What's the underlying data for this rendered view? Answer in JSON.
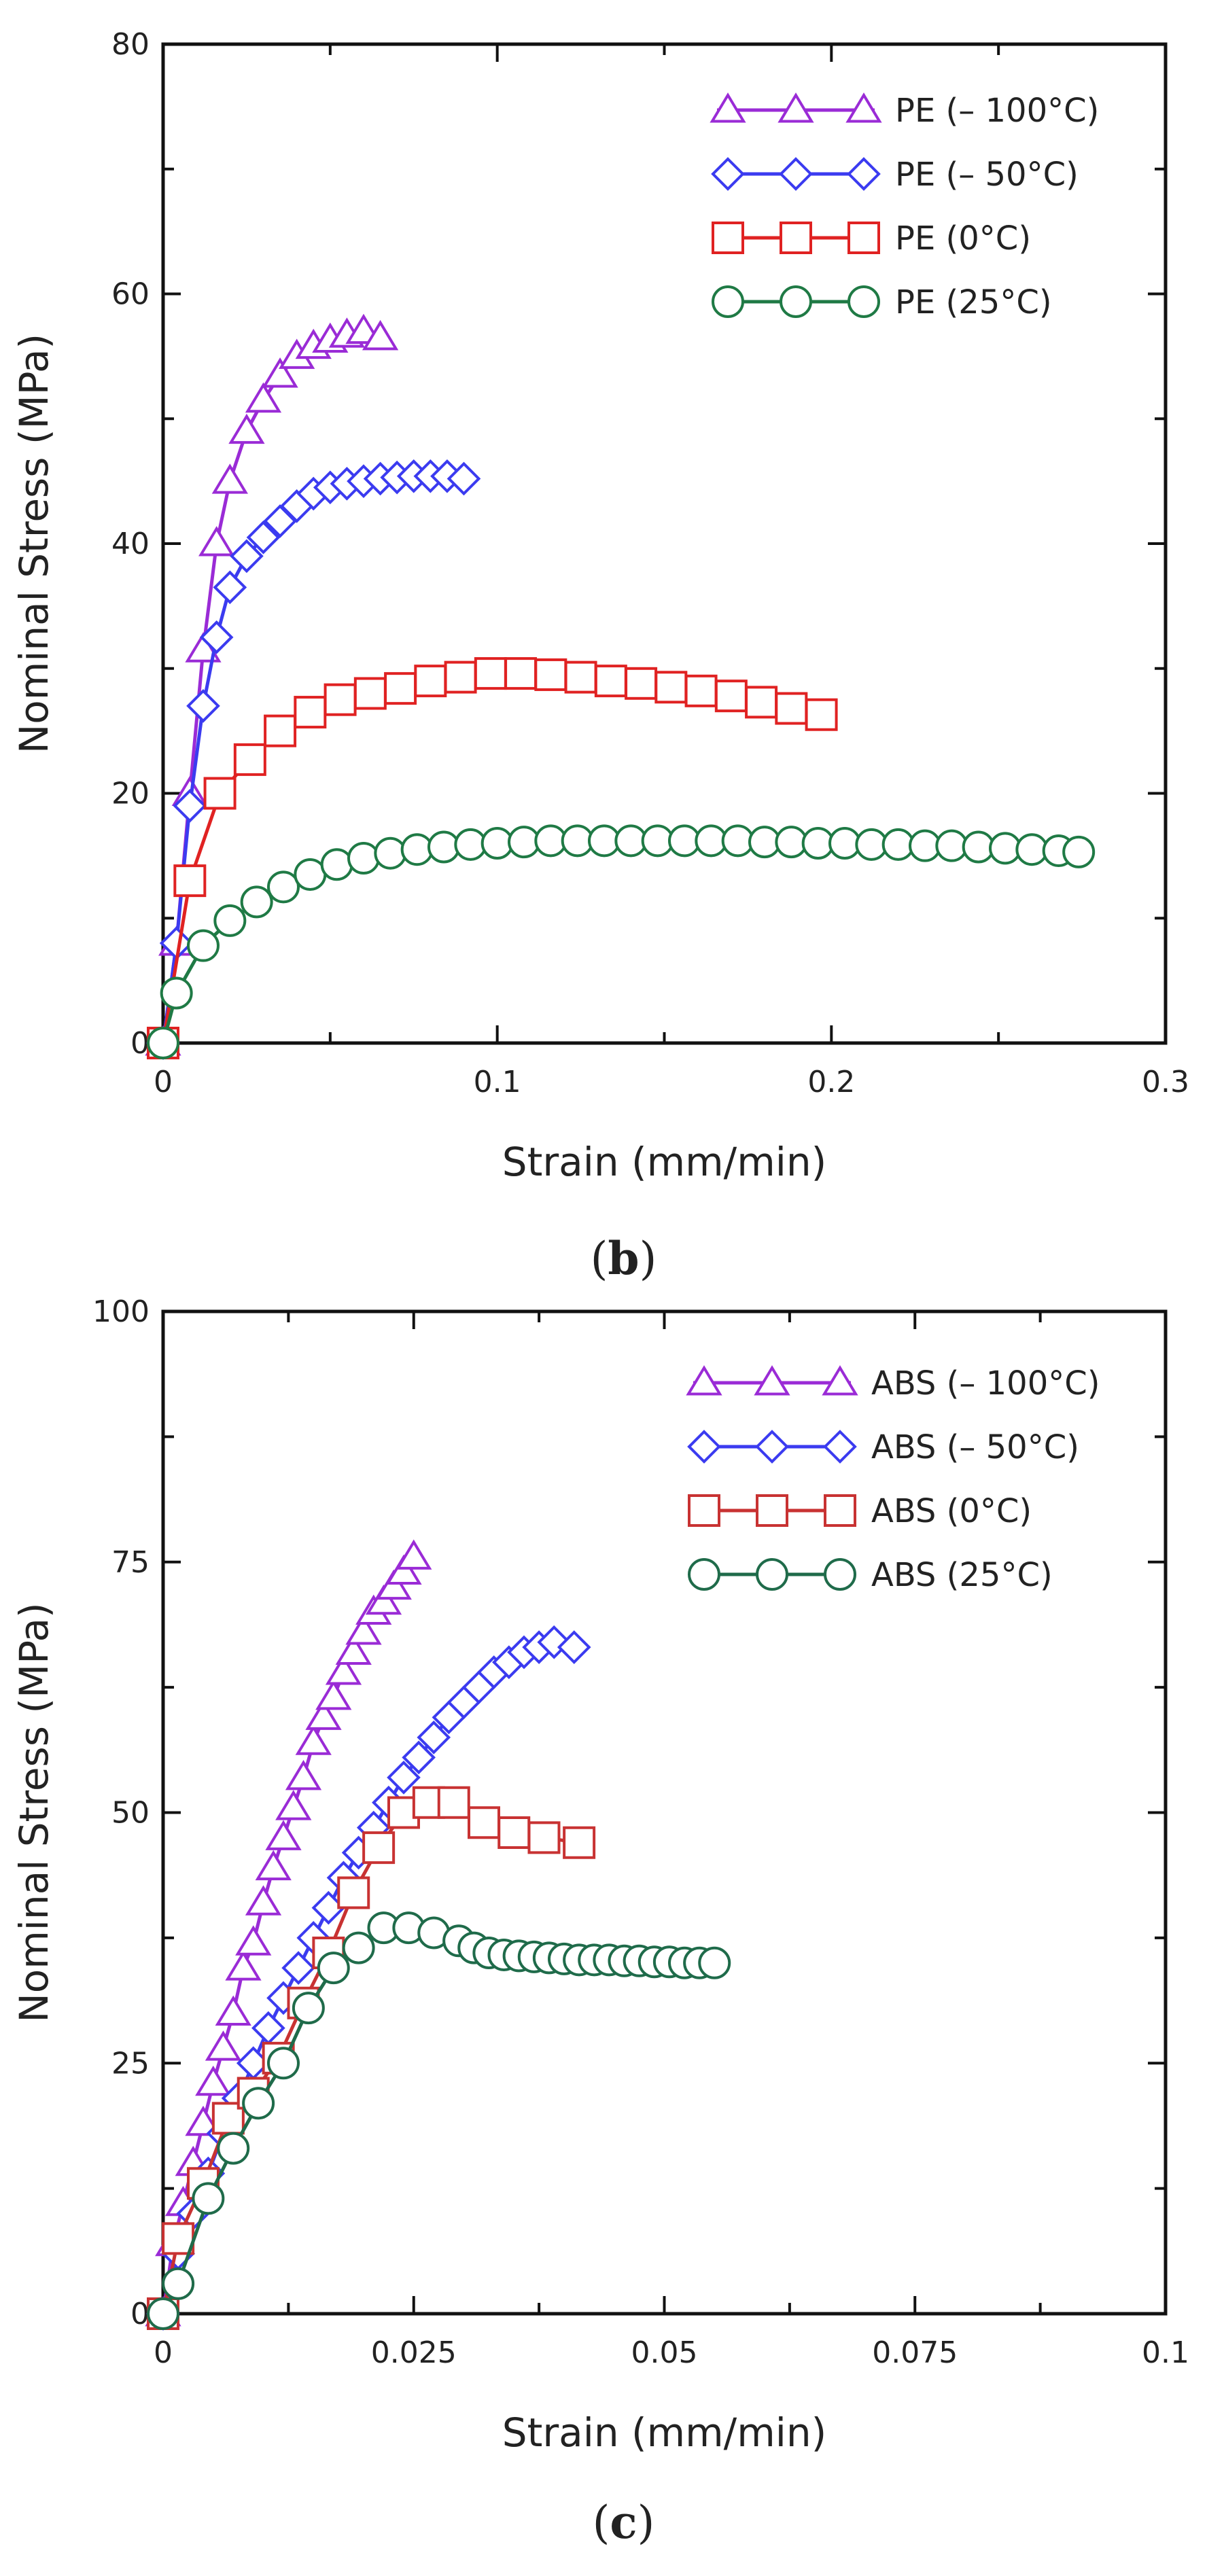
{
  "chart_data": [
    {
      "type": "line",
      "panel_label": "b",
      "xlabel": "Strain (mm/min)",
      "ylabel": "Nominal Stress (MPa)",
      "xlim": [
        0,
        0.3
      ],
      "ylim": [
        0,
        80
      ],
      "xticks": [
        0,
        0.1,
        0.2,
        0.3
      ],
      "xtick_labels": [
        "0",
        "0.1",
        "0.2",
        "0.3"
      ],
      "yticks": [
        0,
        20,
        40,
        60,
        80
      ],
      "ytick_labels": [
        "0",
        "20",
        "40",
        "60",
        "80"
      ],
      "legend_position": "top-right",
      "series": [
        {
          "name": "PE (– 100°C)",
          "color": "#9a2bd6",
          "marker": "triangle",
          "x": [
            0,
            0.004,
            0.008,
            0.012,
            0.016,
            0.02,
            0.025,
            0.03,
            0.035,
            0.04,
            0.045,
            0.05,
            0.055,
            0.06,
            0.065
          ],
          "y": [
            0,
            8,
            20,
            31.5,
            40,
            45,
            49,
            51.5,
            53.5,
            55,
            55.8,
            56.3,
            56.7,
            57,
            56.5
          ]
        },
        {
          "name": "PE (– 50°C)",
          "color": "#3b3bf0",
          "marker": "diamond",
          "x": [
            0,
            0.004,
            0.008,
            0.012,
            0.016,
            0.02,
            0.025,
            0.03,
            0.035,
            0.04,
            0.045,
            0.05,
            0.055,
            0.06,
            0.065,
            0.07,
            0.075,
            0.08,
            0.085,
            0.09
          ],
          "y": [
            0,
            8,
            19,
            27,
            32.5,
            36.5,
            39,
            40.5,
            41.8,
            43,
            44,
            44.5,
            44.8,
            45,
            45.2,
            45.3,
            45.4,
            45.4,
            45.4,
            45.2
          ]
        },
        {
          "name": "PE (0°C)",
          "color": "#e02222",
          "marker": "square",
          "x": [
            0,
            0.008,
            0.017,
            0.026,
            0.035,
            0.044,
            0.053,
            0.062,
            0.071,
            0.08,
            0.089,
            0.098,
            0.107,
            0.116,
            0.125,
            0.134,
            0.143,
            0.152,
            0.161,
            0.17,
            0.179,
            0.188,
            0.197
          ],
          "y": [
            0,
            13,
            20,
            22.7,
            25,
            26.5,
            27.5,
            28,
            28.4,
            29,
            29.3,
            29.6,
            29.6,
            29.5,
            29.3,
            29,
            28.8,
            28.5,
            28.2,
            27.8,
            27.3,
            26.8,
            26.3
          ]
        },
        {
          "name": "PE (25°C)",
          "color": "#1f7a45",
          "marker": "circle",
          "x": [
            0,
            0.004,
            0.012,
            0.02,
            0.028,
            0.036,
            0.044,
            0.052,
            0.06,
            0.068,
            0.076,
            0.084,
            0.092,
            0.1,
            0.108,
            0.116,
            0.124,
            0.132,
            0.14,
            0.148,
            0.156,
            0.164,
            0.172,
            0.18,
            0.188,
            0.196,
            0.204,
            0.212,
            0.22,
            0.228,
            0.236,
            0.244,
            0.252,
            0.26,
            0.268,
            0.274
          ],
          "y": [
            0,
            4,
            7.8,
            9.8,
            11.3,
            12.5,
            13.5,
            14.3,
            14.8,
            15.2,
            15.5,
            15.7,
            15.9,
            16,
            16.1,
            16.2,
            16.2,
            16.2,
            16.2,
            16.2,
            16.2,
            16.2,
            16.2,
            16.1,
            16.1,
            16,
            16,
            15.9,
            15.9,
            15.8,
            15.8,
            15.7,
            15.6,
            15.5,
            15.4,
            15.3
          ]
        }
      ]
    },
    {
      "type": "line",
      "panel_label": "c",
      "xlabel": "Strain (mm/min)",
      "ylabel": "Nominal Stress (MPa)",
      "xlim": [
        0,
        0.1
      ],
      "ylim": [
        0,
        100
      ],
      "xticks": [
        0,
        0.025,
        0.05,
        0.075,
        0.1
      ],
      "xtick_labels": [
        "0",
        "0.025",
        "0.05",
        "0.075",
        "0.1"
      ],
      "yticks": [
        0,
        25,
        50,
        75,
        100
      ],
      "ytick_labels": [
        "0",
        "25",
        "50",
        "75",
        "100"
      ],
      "legend_position": "top-right",
      "series": [
        {
          "name": "ABS (– 100°C)",
          "color": "#9a2bd6",
          "marker": "triangle",
          "x": [
            0,
            0.001,
            0.002,
            0.003,
            0.004,
            0.005,
            0.006,
            0.007,
            0.008,
            0.009,
            0.01,
            0.011,
            0.012,
            0.013,
            0.014,
            0.015,
            0.016,
            0.017,
            0.018,
            0.019,
            0.02,
            0.021,
            0.022,
            0.023,
            0.024,
            0.025
          ],
          "y": [
            0,
            7,
            11,
            15,
            19,
            23,
            26.5,
            30,
            34.5,
            37,
            41,
            44.5,
            47.5,
            50.5,
            53.5,
            57,
            59.5,
            61.5,
            64,
            66,
            68,
            70,
            71,
            72.5,
            74,
            75.5
          ]
        },
        {
          "name": "ABS (– 50°C)",
          "color": "#3b3bf0",
          "marker": "diamond",
          "x": [
            0,
            0.0015,
            0.003,
            0.0045,
            0.006,
            0.0075,
            0.009,
            0.0105,
            0.012,
            0.0135,
            0.015,
            0.0165,
            0.018,
            0.0195,
            0.021,
            0.0225,
            0.024,
            0.0255,
            0.027,
            0.0285,
            0.03,
            0.0315,
            0.033,
            0.0345,
            0.036,
            0.0375,
            0.039,
            0.041
          ],
          "y": [
            0,
            6,
            10,
            14,
            18,
            21.5,
            25,
            28.5,
            31.5,
            34.5,
            37.5,
            40.5,
            43.5,
            46,
            48.5,
            51,
            53.5,
            55.5,
            57.5,
            59.5,
            61,
            62.5,
            64,
            65,
            66,
            66.5,
            67,
            66.5
          ]
        },
        {
          "name": "ABS (0°C)",
          "color": "#c83232",
          "marker": "square",
          "x": [
            0,
            0.0015,
            0.004,
            0.0065,
            0.009,
            0.0115,
            0.014,
            0.0165,
            0.019,
            0.0215,
            0.024,
            0.0265,
            0.029,
            0.032,
            0.035,
            0.038,
            0.0415
          ],
          "y": [
            0,
            7.5,
            13,
            19.5,
            22,
            25.5,
            31,
            36,
            42,
            46.5,
            50,
            51,
            51,
            49,
            48,
            47.5,
            47
          ]
        },
        {
          "name": "ABS (25°C)",
          "color": "#1f6b4a",
          "marker": "circle",
          "x": [
            0,
            0.0015,
            0.0045,
            0.007,
            0.0095,
            0.012,
            0.0145,
            0.017,
            0.0195,
            0.022,
            0.0245,
            0.027,
            0.0295,
            0.031,
            0.0325,
            0.034,
            0.0355,
            0.037,
            0.0385,
            0.04,
            0.0415,
            0.043,
            0.0445,
            0.046,
            0.0475,
            0.049,
            0.0505,
            0.052,
            0.0535,
            0.055
          ],
          "y": [
            0,
            3,
            11.5,
            16.5,
            21,
            25,
            30.5,
            34.5,
            36.5,
            38.5,
            38.5,
            38,
            37.2,
            36.5,
            36,
            35.8,
            35.7,
            35.6,
            35.5,
            35.4,
            35.3,
            35.3,
            35.3,
            35.2,
            35.2,
            35.1,
            35.1,
            35,
            35,
            35
          ]
        }
      ]
    }
  ]
}
